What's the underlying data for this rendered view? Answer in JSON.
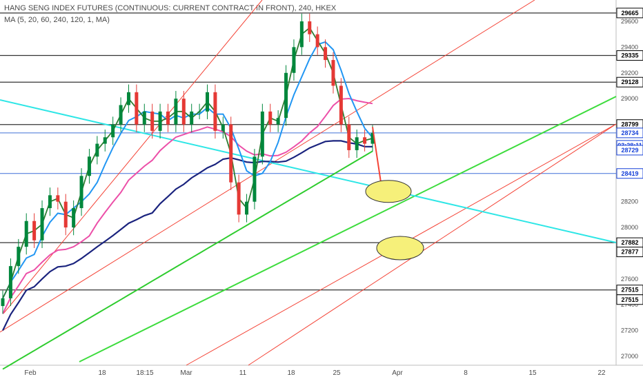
{
  "header": {
    "title": "HANG SENG INDEX FUTURES (CONTINUOUS: CURRENT CONTRACT IN FRONT), 240, HKEX",
    "ma_legend": "MA (5, 20, 60, 240, 120, 1, MA)"
  },
  "colors": {
    "background": "#ffffff",
    "up_candle": "#00873c",
    "down_candle": "#e53935",
    "ma5": "#2e7d32",
    "ma20": "#2196f3",
    "ma60": "#ec4fa8",
    "ma120": "#1a237e",
    "ma240": "#2ecc2e",
    "trendline_cyan": "#2ee6e6",
    "channel_red": "#f44336",
    "channel_green": "#3ddc3d",
    "hline_black": "#333333",
    "hline_blue": "#3f6fd8",
    "ellipse_fill": "#f6f07a",
    "badge_dark": "#000000",
    "badge_blue": "#1540d8"
  },
  "chart_data": {
    "type": "candlestick",
    "title": "HANG SENG INDEX FUTURES (CONTINUOUS: CURRENT CONTRACT IN FRONT), 240, HKEX",
    "ylim": [
      26950,
      29750
    ],
    "x_ticks": [
      "Feb",
      "18",
      "18:15",
      "Mar",
      "11",
      "18",
      "25",
      "Apr",
      "8",
      "15",
      "22"
    ],
    "y_ticks": [
      27000,
      27200,
      27400,
      27600,
      27800,
      28000,
      28200,
      28400,
      28600,
      28800,
      29000,
      29200,
      29400,
      29600
    ],
    "candles_close_path": [
      27450,
      27700,
      27850,
      28050,
      27900,
      28150,
      28250,
      28200,
      28000,
      28150,
      28400,
      28550,
      28650,
      28700,
      28800,
      28950,
      29050,
      28800,
      28900,
      28750,
      28900,
      28800,
      29000,
      28800,
      28900,
      28900,
      29050,
      28750,
      28800,
      28350,
      28100,
      28200,
      28550,
      28900,
      28800,
      28850,
      29200,
      29400,
      29600,
      29500,
      29400,
      29300,
      29100,
      28800,
      28600,
      28700,
      28650,
      28734
    ],
    "moving_averages": [
      "MA 5",
      "MA 20",
      "MA 60",
      "MA 120",
      "MA 240"
    ],
    "horizontal_levels": [
      {
        "value": 29665,
        "label": "29665",
        "style": "black"
      },
      {
        "value": 29335,
        "label": "29335",
        "style": "black"
      },
      {
        "value": 29128,
        "label": "29128",
        "style": "black"
      },
      {
        "value": 28799,
        "label": "28799",
        "style": "black"
      },
      {
        "value": 28734,
        "label": "28734",
        "style": "blue"
      },
      {
        "value": 28419,
        "label": "28419",
        "style": "blue"
      },
      {
        "value": 27882,
        "label": "27882",
        "style": "black"
      },
      {
        "value": 27515,
        "label": "27515",
        "style": "black"
      }
    ],
    "price_badges": [
      {
        "label": "29665",
        "kind": "dark"
      },
      {
        "label": "29335",
        "kind": "dark"
      },
      {
        "label": "29128",
        "kind": "dark"
      },
      {
        "label": "28799",
        "kind": "dark"
      },
      {
        "label": "28734",
        "kind": "blue"
      },
      {
        "label": "03:28:11",
        "kind": "blue"
      },
      {
        "label": "28729",
        "kind": "blue"
      },
      {
        "label": "28419",
        "kind": "blue"
      },
      {
        "label": "27882",
        "kind": "dark"
      },
      {
        "label": "27877",
        "kind": "dark"
      },
      {
        "label": "27515",
        "kind": "dark"
      },
      {
        "label": "27515",
        "kind": "dark"
      }
    ],
    "last_price": 28734,
    "countdown": "03:28:11",
    "forecast_arrow": {
      "from": 28780,
      "to": 28280
    },
    "target_zones": [
      28280,
      27840
    ],
    "legend": "top-left",
    "grid": false
  }
}
